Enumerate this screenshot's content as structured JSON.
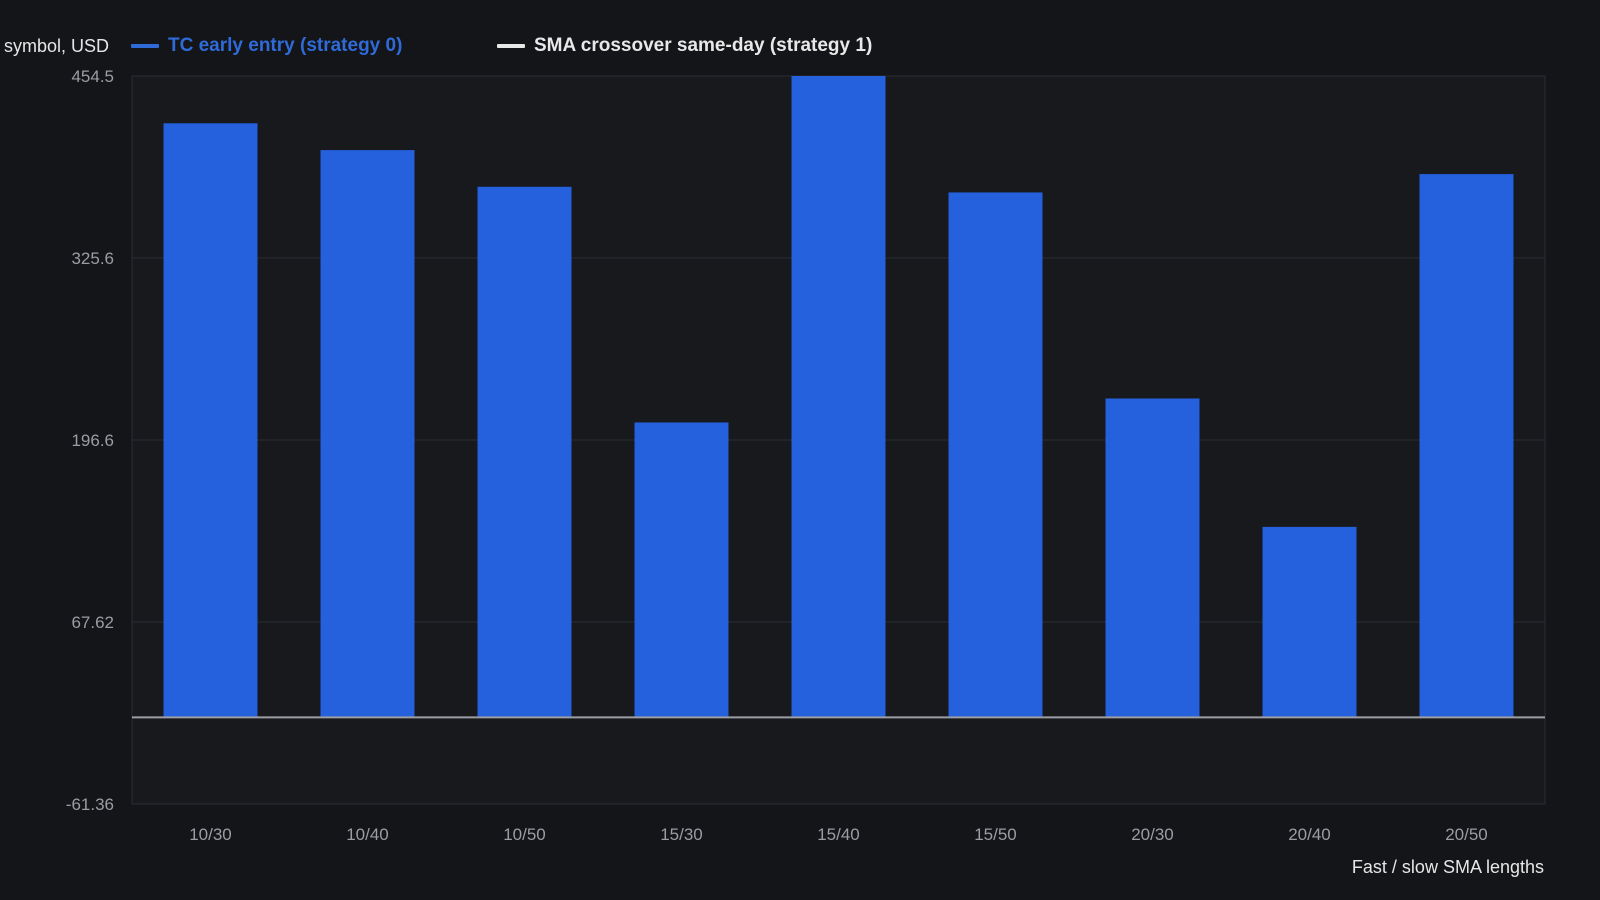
{
  "legend": {
    "y_axis_label": "symbol, USD",
    "series": [
      {
        "name": "TC early entry (strategy 0)",
        "color": "#2f6ad9"
      },
      {
        "name": "SMA crossover same-day (strategy 1)",
        "color": "#e8e8e8"
      }
    ]
  },
  "chart_data": {
    "type": "bar",
    "title": "",
    "xlabel": "Fast / slow SMA lengths",
    "ylabel": "symbol, USD",
    "categories": [
      "10/30",
      "10/40",
      "10/50",
      "15/30",
      "15/40",
      "15/50",
      "20/30",
      "20/40",
      "20/50"
    ],
    "series": [
      {
        "name": "TC early entry (strategy 0)",
        "color": "#2560dd",
        "values": [
          421,
          402,
          376,
          209,
          454.5,
          372,
          226,
          135,
          385
        ]
      },
      {
        "name": "SMA crossover same-day (strategy 1)",
        "color": "#e8e8e8",
        "values": [
          0,
          0,
          0,
          0,
          0,
          0,
          0,
          0,
          0
        ]
      }
    ],
    "ylim": [
      -61.36,
      454.5
    ],
    "yticks": [
      454.5,
      325.6,
      196.6,
      67.62,
      -61.36
    ],
    "ytick_labels": [
      "454.5",
      "325.6",
      "196.6",
      "67.62",
      "-61.36"
    ],
    "grid": true,
    "legend_position": "top-left"
  }
}
